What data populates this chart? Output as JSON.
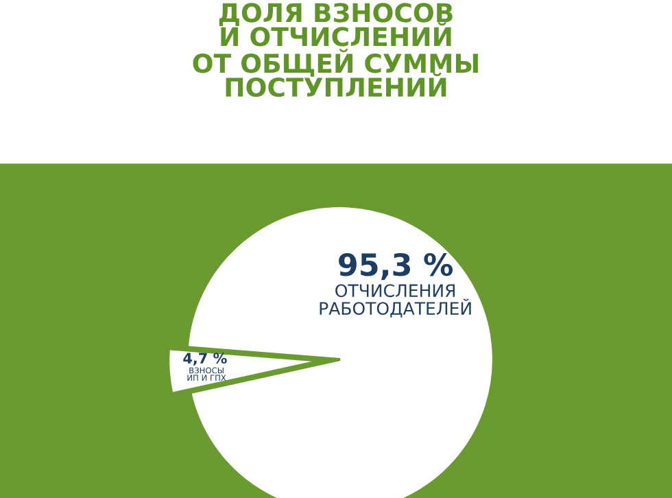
{
  "chart_data": {
    "type": "pie",
    "title": "ДОЛЯ ВЗНОСОВ\nИ ОТЧИСЛЕНИЙ\nОТ ОБЩЕЙ СУММЫ\nПОСТУПЛЕНИЙ",
    "categories": [
      "ВЗНОСЫ\nИП И ГПХ",
      "ОТЧИСЛЕНИЯ\nРАБОТОДАТЕЛЕЙ"
    ],
    "values": [
      4.7,
      95.3
    ],
    "colors": [
      "#ffffff",
      "#ffffff"
    ],
    "value_labels": [
      "4,7 %",
      "95,3 %"
    ],
    "legend": false
  }
}
